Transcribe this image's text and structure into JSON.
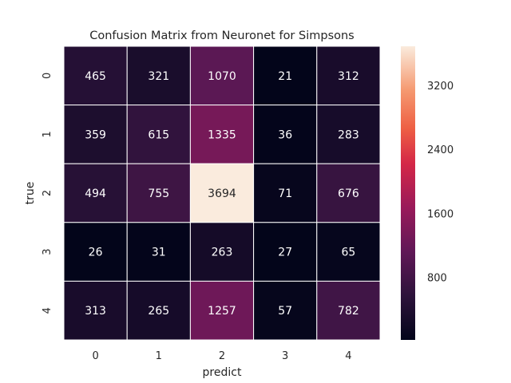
{
  "chart_data": {
    "type": "heatmap",
    "title": "Confusion Matrix from Neuronet for Simpsons",
    "xlabel": "predict",
    "ylabel": "true",
    "x_categories": [
      "0",
      "1",
      "2",
      "3",
      "4"
    ],
    "y_categories": [
      "0",
      "1",
      "2",
      "3",
      "4"
    ],
    "values": [
      [
        465,
        321,
        1070,
        21,
        312
      ],
      [
        359,
        615,
        1335,
        36,
        283
      ],
      [
        494,
        755,
        3694,
        71,
        676
      ],
      [
        26,
        31,
        263,
        27,
        65
      ],
      [
        313,
        265,
        1257,
        57,
        782
      ]
    ],
    "colorbar": {
      "ticks": [
        800,
        1600,
        2400,
        3200
      ],
      "range": [
        21,
        3694
      ]
    },
    "colormap": "rocket",
    "grid": false,
    "legend": "colorbar-right"
  }
}
